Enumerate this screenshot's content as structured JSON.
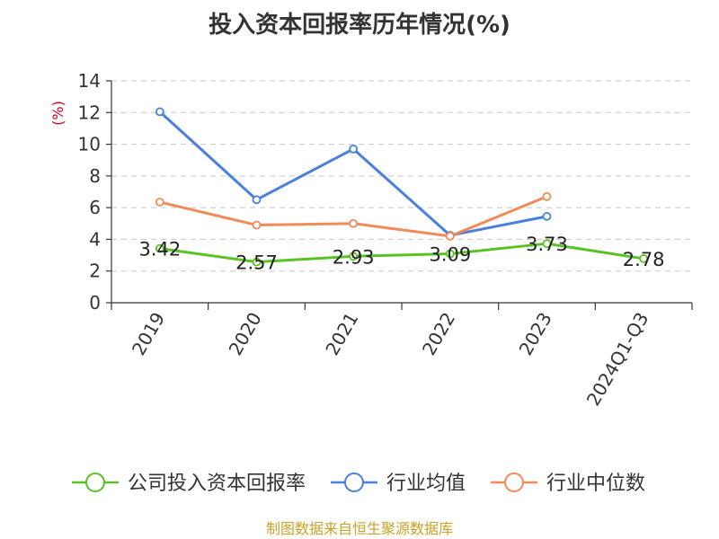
{
  "title": "投入资本回报率历年情况(%)",
  "y_unit": "(%)",
  "source": "制图数据来自恒生聚源数据库",
  "chart_data": {
    "type": "line",
    "categories": [
      "2019",
      "2020",
      "2021",
      "2022",
      "2023",
      "2024Q1-Q3"
    ],
    "ylim": [
      0,
      14
    ],
    "yticks": [
      0,
      2,
      4,
      6,
      8,
      10,
      12,
      14
    ],
    "grid": true,
    "legend_position": "bottom",
    "series": [
      {
        "name": "公司投入资本回报率",
        "color": "#5bc226",
        "values": [
          3.42,
          2.57,
          2.93,
          3.09,
          3.73,
          2.78
        ],
        "labels": [
          "3.42",
          "2.57",
          "2.93",
          "3.09",
          "3.73",
          "2.78"
        ]
      },
      {
        "name": "行业均值",
        "color": "#4a7fdc",
        "values": [
          12.05,
          6.5,
          9.7,
          4.25,
          5.45,
          null
        ]
      },
      {
        "name": "行业中位数",
        "color": "#f28a5a",
        "values": [
          6.35,
          4.9,
          5.0,
          4.2,
          6.7,
          null
        ]
      }
    ]
  }
}
